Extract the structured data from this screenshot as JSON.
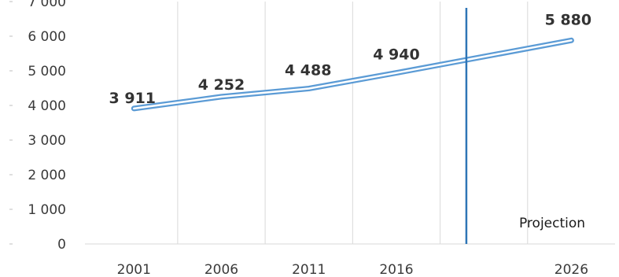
{
  "chart_data": {
    "type": "line",
    "x": [
      2001,
      2006,
      2011,
      2016,
      2026
    ],
    "x_tick_labels": [
      "2001",
      "2006",
      "2011",
      "2016",
      "2026"
    ],
    "values": [
      3911,
      4252,
      4488,
      4940,
      5880
    ],
    "data_labels": [
      "3 911",
      "4 252",
      "4 488",
      "4 940",
      "5 880"
    ],
    "ylim": [
      0,
      7000
    ],
    "y_ticks": [
      0,
      1000,
      2000,
      3000,
      4000,
      5000,
      6000,
      7000
    ],
    "y_tick_labels": [
      "0",
      "1 000",
      "2 000",
      "3 000",
      "4 000",
      "5 000",
      "6 000",
      "7 000"
    ],
    "projection_start_x": 2020,
    "projection_label": "Projection",
    "grid": "vertical",
    "legend": "none",
    "colors": {
      "line": "#5b9bd5",
      "divider": "#2e75b6",
      "grid": "#d9d9d9"
    }
  }
}
